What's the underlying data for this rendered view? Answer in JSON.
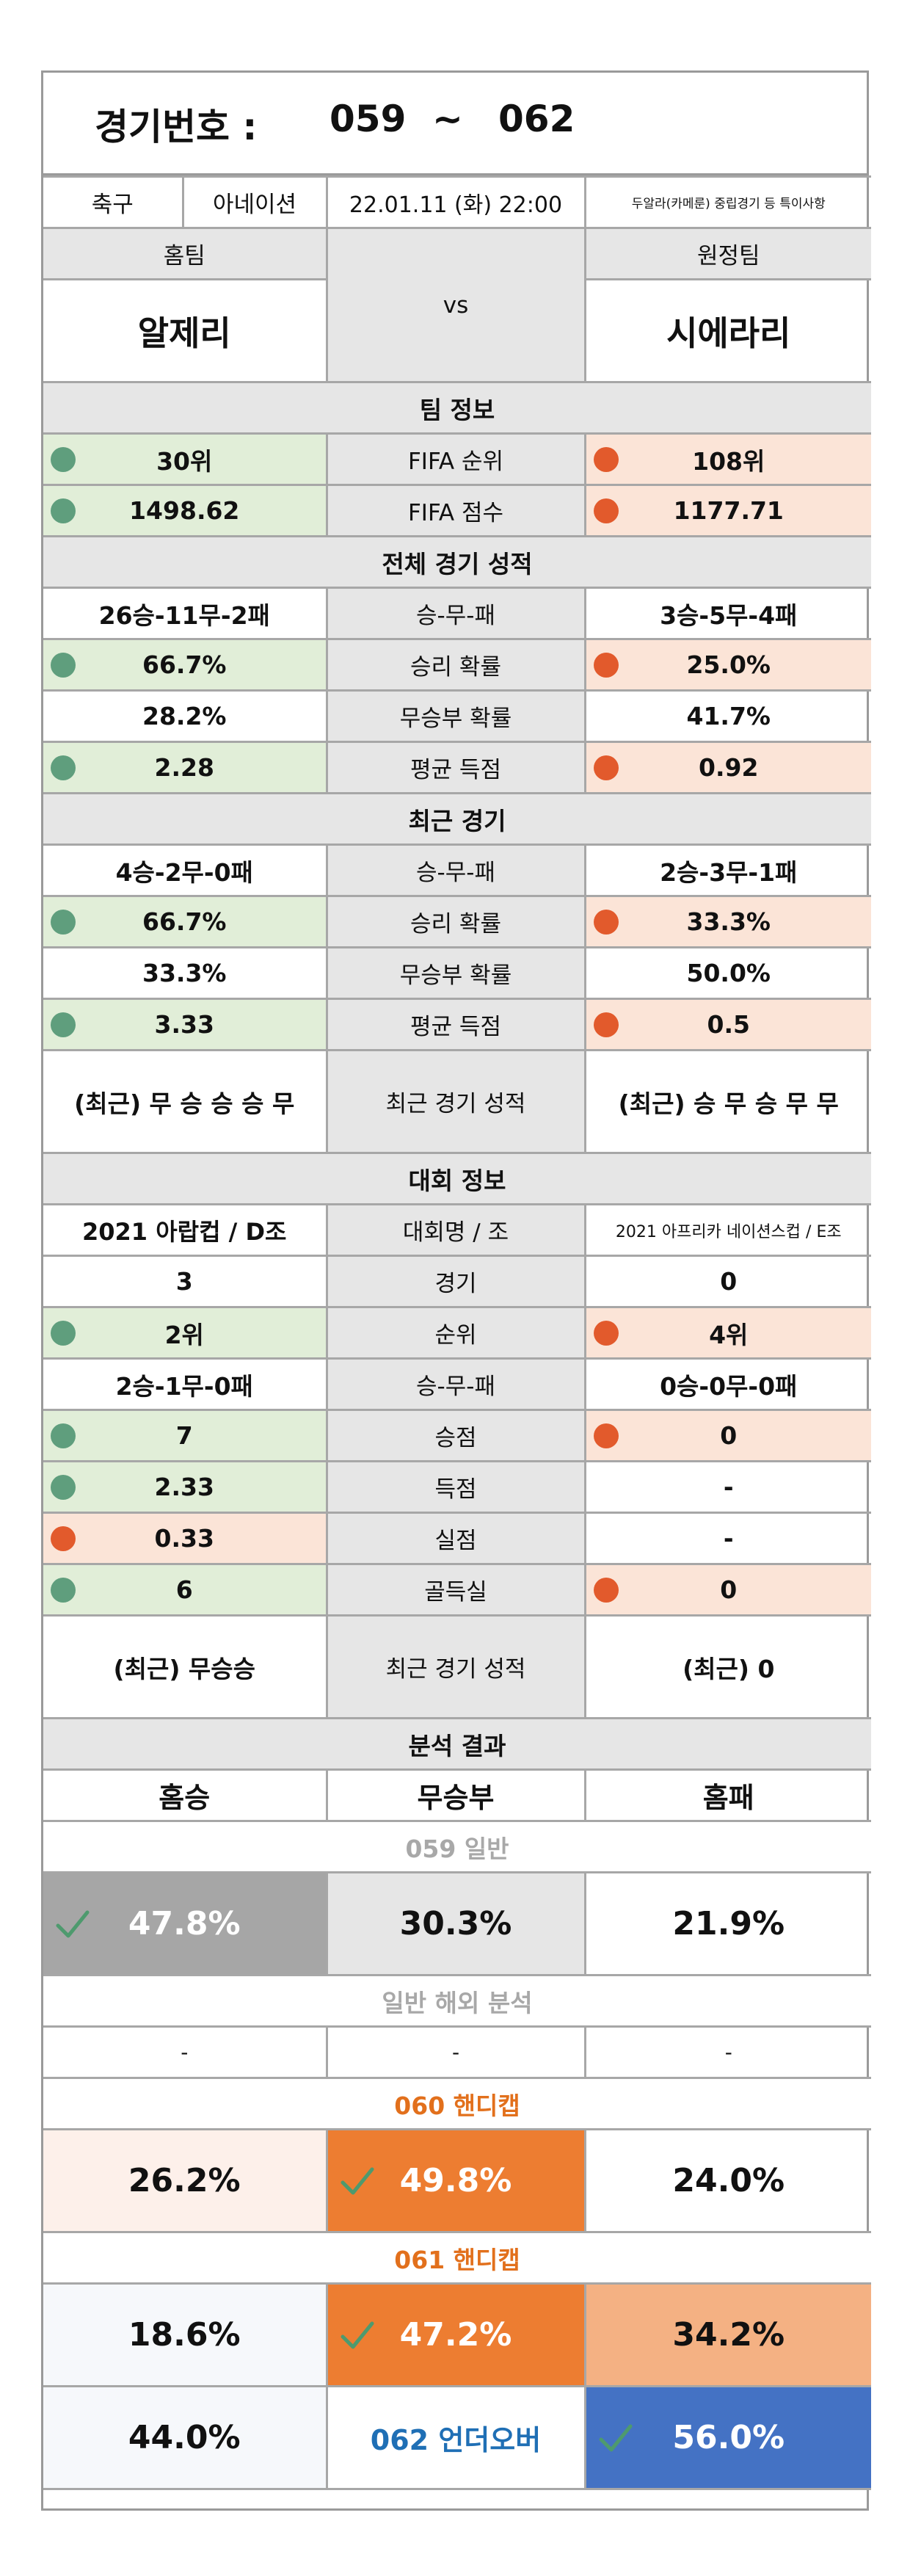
{
  "header": {
    "label": "경기번호 :",
    "from": "059",
    "sep": "~",
    "to": "062"
  },
  "info": {
    "sport": "축구",
    "league": "아네이션",
    "datetime": "22.01.11 (화) 22:00",
    "note": "두알라(카메룬) 중립경기 등 특이사항"
  },
  "teams": {
    "home_label": "홈팀",
    "away_label": "원정팀",
    "vs": "vs",
    "home": "알제리",
    "away": "시에라리"
  },
  "team_info": {
    "title": "팀 정보",
    "rows": [
      {
        "label": "FIFA 순위",
        "home": "30위",
        "away": "108위"
      },
      {
        "label": "FIFA 점수",
        "home": "1498.62",
        "away": "1177.71"
      }
    ]
  },
  "overall": {
    "title": "전체 경기 성적",
    "rows": [
      {
        "label": "승-무-패",
        "home": "26승-11무-2패",
        "away": "3승-5무-4패"
      },
      {
        "label": "승리 확률",
        "home": "66.7%",
        "away": "25.0%"
      },
      {
        "label": "무승부 확률",
        "home": "28.2%",
        "away": "41.7%"
      },
      {
        "label": "평균 득점",
        "home": "2.28",
        "away": "0.92"
      }
    ]
  },
  "recent": {
    "title": "최근 경기",
    "rows": [
      {
        "label": "승-무-패",
        "home": "4승-2무-0패",
        "away": "2승-3무-1패"
      },
      {
        "label": "승리 확률",
        "home": "66.7%",
        "away": "33.3%"
      },
      {
        "label": "무승부 확률",
        "home": "33.3%",
        "away": "50.0%"
      },
      {
        "label": "평균 득점",
        "home": "3.33",
        "away": "0.5"
      },
      {
        "label": "최근 경기 성적",
        "home": "(최근) 무 승 승 승 무",
        "away": "(최근) 승 무 승 무 무"
      }
    ]
  },
  "tournament": {
    "title": "대회 정보",
    "rows": [
      {
        "label": "대회명 / 조",
        "home": "2021 아랍컵 / D조",
        "away": "2021 아프리카 네이션스컵 / E조"
      },
      {
        "label": "경기",
        "home": "3",
        "away": "0"
      },
      {
        "label": "순위",
        "home": "2위",
        "away": "4위"
      },
      {
        "label": "승-무-패",
        "home": "2승-1무-0패",
        "away": "0승-0무-0패"
      },
      {
        "label": "승점",
        "home": "7",
        "away": "0"
      },
      {
        "label": "득점",
        "home": "2.33",
        "away": "-"
      },
      {
        "label": "실점",
        "home": "0.33",
        "away": "-"
      },
      {
        "label": "골득실",
        "home": "6",
        "away": "0"
      },
      {
        "label": "최근 경기 성적",
        "home": "(최근) 무승승",
        "away": "(최근) 0"
      }
    ]
  },
  "analysis": {
    "title": "분석 결과",
    "headers": [
      "홈승",
      "무승부",
      "홈패"
    ],
    "general": {
      "label": "059 일반",
      "values": [
        "47.8%",
        "30.3%",
        "21.9%"
      ]
    },
    "overseas": {
      "label": "일반 해외 분석",
      "values": [
        "-",
        "-",
        "-"
      ]
    },
    "handicap1": {
      "label": "060 핸디캡",
      "values": [
        "26.2%",
        "49.8%",
        "24.0%"
      ]
    },
    "handicap2": {
      "label": "061 핸디캡",
      "values": [
        "18.6%",
        "47.2%",
        "34.2%"
      ]
    },
    "underover": {
      "label": "062 언더오버",
      "under": "44.0%",
      "over": "56.0%"
    }
  },
  "colors": {
    "home_highlight": "#e1eed8",
    "away_highlight": "#fbe4d7",
    "good_dot": "#5f9e7d",
    "bad_dot": "#e25a2c",
    "pick_gray": "#a6a6a6",
    "pick_orange": "#ed7d31",
    "pick_light_orange": "#f4b183",
    "pick_blue": "#4472c4",
    "label_orange": "#e2701c",
    "label_blue": "#1f6fb5"
  },
  "icons": {
    "dot": "status-dot",
    "pick": "check-icon"
  }
}
